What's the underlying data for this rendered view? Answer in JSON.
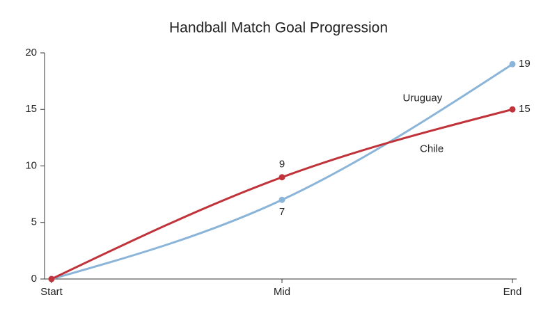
{
  "chart_data": {
    "type": "line",
    "title": "Handball Match Goal Progression",
    "categories": [
      "Start",
      "Mid",
      "End"
    ],
    "series": [
      {
        "name": "Uruguay",
        "color": "#8ab4d8",
        "values": [
          0,
          7,
          19
        ]
      },
      {
        "name": "Chile",
        "color": "#c0333a",
        "values": [
          0,
          9,
          15
        ]
      }
    ],
    "ylim": [
      0,
      20
    ],
    "yticks": [
      0,
      5,
      10,
      15,
      20
    ],
    "grid": false
  }
}
